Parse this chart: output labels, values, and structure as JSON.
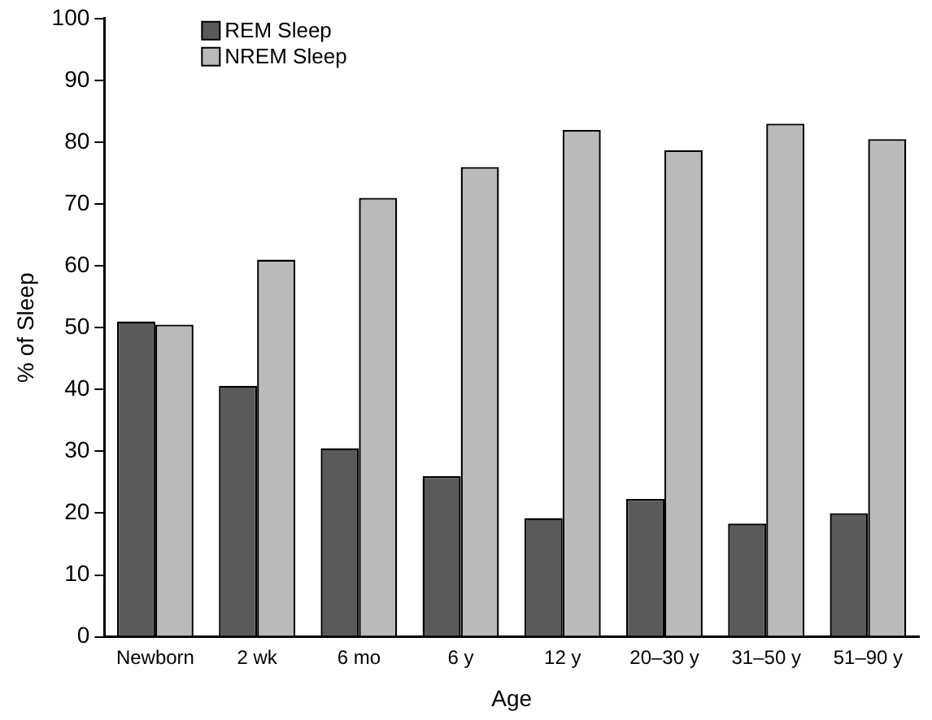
{
  "chart_data": {
    "type": "bar",
    "xlabel": "Age",
    "ylabel": "% of Sleep",
    "categories": [
      "Newborn",
      "2 wk",
      "6 mo",
      "6 y",
      "12 y",
      "20–30 y",
      "31–50 y",
      "51–90 y"
    ],
    "series": [
      {
        "name": "REM Sleep",
        "color": "#5a5a5a",
        "values": [
          51,
          40.6,
          30.5,
          26,
          19.2,
          22.3,
          18.3,
          20
        ]
      },
      {
        "name": "NREM Sleep",
        "color": "#bababa",
        "values": [
          50.5,
          61,
          71,
          76,
          82,
          78.7,
          83,
          80.5
        ]
      }
    ],
    "ylim": [
      0,
      100
    ],
    "yticks": [
      0,
      10,
      20,
      30,
      40,
      50,
      60,
      70,
      80,
      90,
      100
    ],
    "grid": false,
    "legend": "top left"
  }
}
